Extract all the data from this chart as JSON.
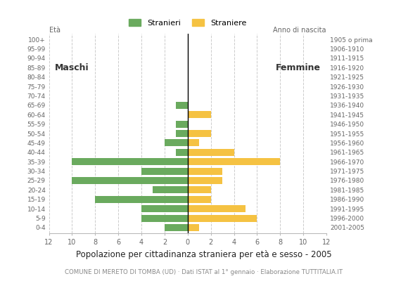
{
  "age_groups": [
    "0-4",
    "5-9",
    "10-14",
    "15-19",
    "20-24",
    "25-29",
    "30-34",
    "35-39",
    "40-44",
    "45-49",
    "50-54",
    "55-59",
    "60-64",
    "65-69",
    "70-74",
    "75-79",
    "80-84",
    "85-89",
    "90-94",
    "95-99",
    "100+"
  ],
  "birth_years": [
    "2001-2005",
    "1996-2000",
    "1991-1995",
    "1986-1990",
    "1981-1985",
    "1976-1980",
    "1971-1975",
    "1966-1970",
    "1961-1965",
    "1956-1960",
    "1951-1955",
    "1946-1950",
    "1941-1945",
    "1936-1940",
    "1931-1935",
    "1926-1930",
    "1921-1925",
    "1916-1920",
    "1911-1915",
    "1906-1910",
    "1905 o prima"
  ],
  "males": [
    2,
    4,
    4,
    8,
    3,
    10,
    4,
    10,
    1,
    2,
    1,
    1,
    0,
    1,
    0,
    0,
    0,
    0,
    0,
    0,
    0
  ],
  "females": [
    1,
    6,
    5,
    2,
    2,
    3,
    3,
    8,
    4,
    1,
    2,
    0,
    2,
    0,
    0,
    0,
    0,
    0,
    0,
    0,
    0
  ],
  "color_male": "#6aaa5e",
  "color_female": "#f5c242",
  "title": "Popolazione per cittadinanza straniera per età e sesso - 2005",
  "subtitle": "COMUNE DI MERETO DI TOMBA (UD) · Dati ISTAT al 1° gennaio · Elaborazione TUTTITALIA.IT",
  "label_eta": "Età",
  "label_maschi": "Maschi",
  "label_femmine": "Femmine",
  "label_stranieri": "Stranieri",
  "label_straniere": "Straniere",
  "label_anno": "Anno di nascita",
  "xlim": 12,
  "background_color": "#ffffff",
  "grid_color": "#cccccc"
}
